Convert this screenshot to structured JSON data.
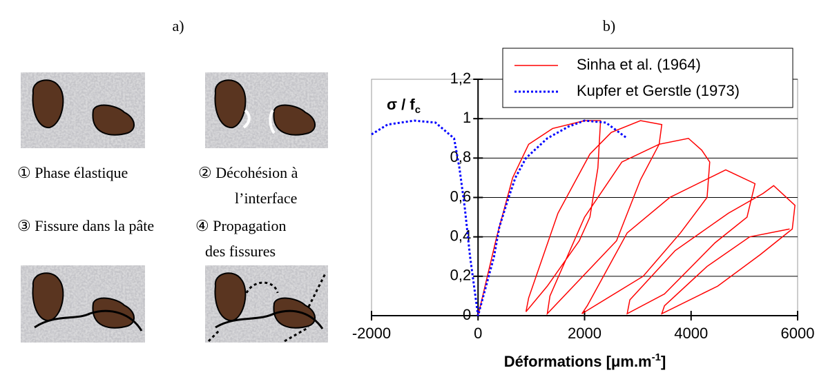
{
  "panel_a": {
    "label": "a)",
    "captions": [
      "① Phase élastique",
      "② Décohésion à",
      "l’interface",
      "③ Fissure dans la pâte",
      "④ Propagation",
      "des fissures"
    ]
  },
  "chart_data": {
    "type": "line",
    "panel_label": "b)",
    "ylabel": {
      "text": "σ / f",
      "sub": "c"
    },
    "xlabel": {
      "text": "Déformations [μm.m",
      "sup": "-1",
      "end": "]"
    },
    "xlim": [
      -2000,
      6000
    ],
    "ylim": [
      0,
      1.2
    ],
    "xticks": [
      -2000,
      0,
      2000,
      4000,
      6000
    ],
    "yticks": [
      0,
      {
        "value": 0.2,
        "label": "0,2"
      },
      {
        "value": 0.4,
        "label": "0,4"
      },
      {
        "value": 0.6,
        "label": "0,6"
      },
      {
        "value": 0.8,
        "label": "0,8"
      },
      1,
      {
        "value": 1.2,
        "label": "1,2"
      }
    ],
    "grid": true,
    "series": [
      {
        "name": "Sinha et al. (1964)",
        "color": "#ff0000",
        "dash": false,
        "x": [
          0,
          350,
          650,
          950,
          1400,
          2000,
          2300,
          2250,
          2100,
          1900,
          1300,
          900,
          950,
          1500,
          2100,
          2500,
          3050,
          3450,
          3400,
          3050,
          2600,
          1300,
          1350,
          2000,
          2700,
          3400,
          3950,
          4200,
          4350,
          4300,
          3800,
          3100,
          1950,
          2050,
          2800,
          3600,
          4650,
          5200,
          5050,
          4450,
          3500,
          2800,
          2850,
          3700,
          4700,
          5350,
          5550,
          5950,
          5900,
          5300,
          4500,
          3450,
          3500,
          4300,
          5100,
          5850
        ],
        "values": [
          0,
          0.4,
          0.7,
          0.87,
          0.95,
          0.99,
          0.99,
          0.75,
          0.5,
          0.38,
          0.15,
          0.02,
          0.09,
          0.52,
          0.82,
          0.93,
          0.99,
          0.97,
          0.87,
          0.69,
          0.38,
          0.01,
          0.1,
          0.5,
          0.78,
          0.87,
          0.9,
          0.84,
          0.78,
          0.6,
          0.42,
          0.2,
          0.01,
          0.05,
          0.42,
          0.6,
          0.74,
          0.67,
          0.5,
          0.37,
          0.11,
          0.01,
          0.08,
          0.33,
          0.52,
          0.62,
          0.66,
          0.56,
          0.44,
          0.31,
          0.15,
          0.01,
          0.05,
          0.25,
          0.4,
          0.44
        ]
      },
      {
        "name": "Kupfer et Gerstle (1973)",
        "color": "#0000ff",
        "dash": true,
        "x": [
          -2000,
          -1700,
          -1200,
          -800,
          -450,
          -350,
          -250,
          -150,
          -50,
          0,
          150,
          300,
          400,
          550,
          700,
          900,
          1300,
          1700,
          2000,
          2400,
          2800
        ],
        "values": [
          0.92,
          0.97,
          0.99,
          0.98,
          0.9,
          0.75,
          0.55,
          0.3,
          0.1,
          0,
          0.15,
          0.3,
          0.45,
          0.58,
          0.7,
          0.8,
          0.9,
          0.96,
          0.99,
          0.98,
          0.9
        ]
      }
    ]
  }
}
